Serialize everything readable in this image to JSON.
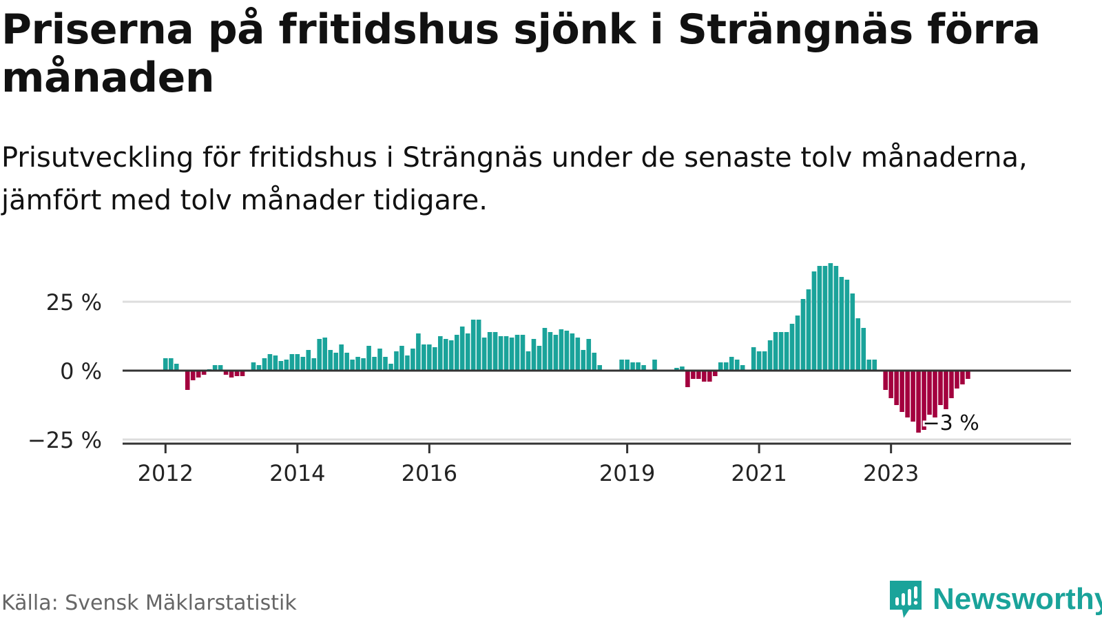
{
  "title": "Priserna på fritidshus sjönk i Strängnäs förra månaden",
  "subtitle": "Prisutveckling för fritidshus i Strängnäs under de senaste tolv månaderna, jämfört med tolv månader tidigare.",
  "source": "Källa: Svensk Mäklarstatistik",
  "brand": "Newsworthy",
  "colors": {
    "positive": "#1aa39a",
    "negative": "#a3003e",
    "grid": "#dddddd",
    "axis": "#333333",
    "brand": "#1aa39a"
  },
  "chart_data": {
    "type": "bar",
    "yunit": "%",
    "ylim": [
      -25,
      40
    ],
    "yticks": [
      -25,
      0,
      25
    ],
    "ytick_labels": [
      "−25 %",
      "0 %",
      "25 %"
    ],
    "xticks": [
      {
        "label": "2012",
        "index": 0
      },
      {
        "label": "2014",
        "index": 24
      },
      {
        "label": "2016",
        "index": 48
      },
      {
        "label": "2019",
        "index": 84
      },
      {
        "label": "2021",
        "index": 108
      },
      {
        "label": "2023",
        "index": 132
      }
    ],
    "grid": true,
    "annotation": {
      "label": "−3 %",
      "index": 143
    },
    "values": [
      4.5,
      4.5,
      2.5,
      null,
      -7,
      -3.5,
      -2.5,
      -1.5,
      0.5,
      2,
      2,
      -1.5,
      -2.5,
      -2,
      -2,
      null,
      3,
      2,
      4.5,
      6,
      5.5,
      3.5,
      4,
      6,
      6,
      5,
      7.5,
      4.5,
      11.5,
      12,
      7.5,
      6.5,
      9.5,
      6.5,
      4,
      5,
      4.5,
      9,
      5,
      8,
      5,
      2.5,
      7,
      9,
      5.5,
      8,
      13.5,
      9.5,
      9.5,
      8.5,
      12.5,
      11.5,
      11,
      13,
      16,
      13.5,
      18.5,
      18.5,
      12,
      14,
      14,
      12.5,
      12.5,
      12,
      13,
      13,
      7,
      11.5,
      9,
      15.5,
      14,
      13,
      15,
      14.5,
      13.5,
      12,
      7.5,
      11.5,
      6.5,
      2,
      null,
      null,
      null,
      4,
      4,
      3,
      3,
      2,
      null,
      4,
      null,
      null,
      null,
      1,
      1.5,
      -6,
      -3,
      -3,
      -4,
      -4,
      -2,
      3,
      3,
      5,
      4,
      2,
      null,
      8.5,
      7,
      7,
      11,
      14,
      14,
      14,
      17,
      20,
      26,
      29.5,
      36,
      38,
      38,
      39,
      38,
      34,
      33,
      28,
      19,
      15.5,
      4,
      4,
      null,
      -7,
      -10,
      -12.5,
      -15,
      -17,
      -18.5,
      -22.5,
      -21.5,
      -16,
      -17,
      -12.5,
      -14,
      -10,
      -6.5,
      -5,
      -3
    ]
  }
}
